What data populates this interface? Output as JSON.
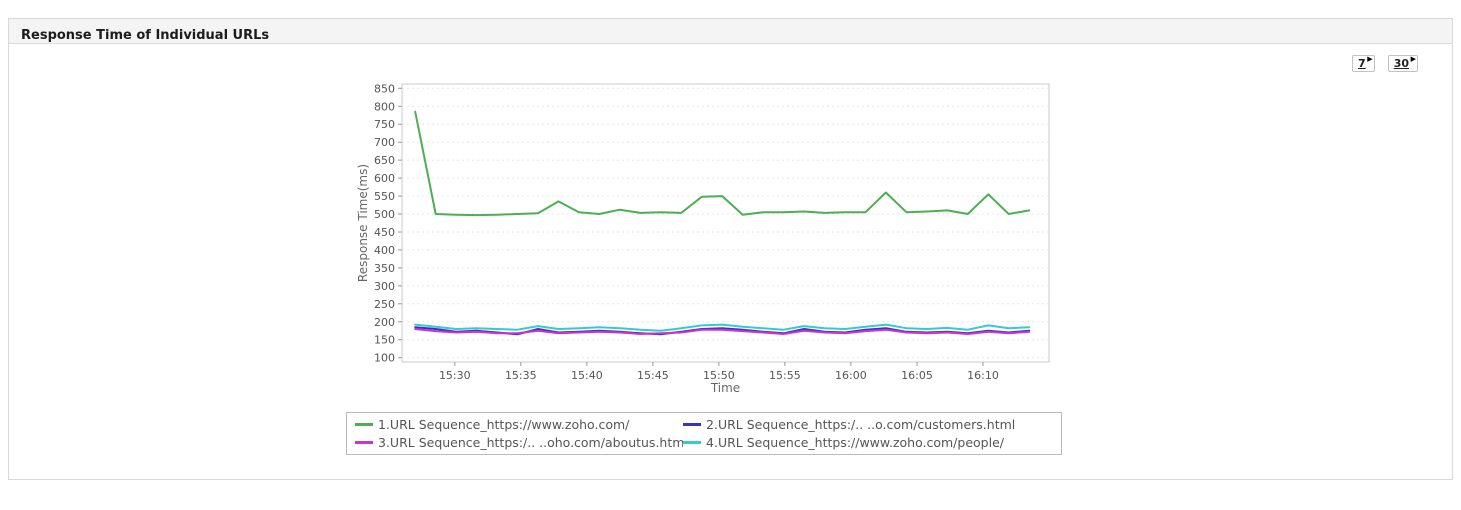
{
  "panel": {
    "title": "Response Time of Individual URLs"
  },
  "toolbar": {
    "buttons": [
      {
        "label": "7"
      },
      {
        "label": "30"
      }
    ]
  },
  "chart_data": {
    "type": "line",
    "title": "Response Time of Individual URLs",
    "xlabel": "Time",
    "ylabel": "Response Time(ms)",
    "ylim": [
      100,
      850
    ],
    "y_ticks": [
      100,
      150,
      200,
      250,
      300,
      350,
      400,
      450,
      500,
      550,
      600,
      650,
      700,
      750,
      800,
      850
    ],
    "x_domain": [
      26,
      75
    ],
    "x_ticks": [
      {
        "pos": 30,
        "label": "15:30"
      },
      {
        "pos": 35,
        "label": "15:35"
      },
      {
        "pos": 40,
        "label": "15:40"
      },
      {
        "pos": 45,
        "label": "15:45"
      },
      {
        "pos": 50,
        "label": "15:50"
      },
      {
        "pos": 55,
        "label": "15:55"
      },
      {
        "pos": 60,
        "label": "16:00"
      },
      {
        "pos": 65,
        "label": "16:05"
      },
      {
        "pos": 70,
        "label": "16:10"
      }
    ],
    "x": [
      27,
      28.55,
      30.1,
      31.65,
      33.2,
      34.75,
      36.3,
      37.85,
      39.4,
      40.95,
      42.5,
      44.05,
      45.6,
      47.15,
      48.7,
      50.25,
      51.8,
      53.35,
      54.9,
      56.45,
      58,
      59.55,
      61.1,
      62.65,
      64.2,
      65.75,
      67.3,
      68.85,
      70.4,
      71.95,
      73.5
    ],
    "series": [
      {
        "name": "1.URL Sequence_https://www.zoho.com/",
        "color": "#4caf50",
        "values": [
          785,
          500,
          498,
          497,
          498,
          500,
          502,
          535,
          505,
          500,
          512,
          503,
          505,
          503,
          548,
          550,
          498,
          505,
          505,
          507,
          503,
          505,
          505,
          560,
          505,
          507,
          510,
          500,
          555,
          500,
          510
        ]
      },
      {
        "name": "2.URL Sequence_https:/.. ..o.com/customers.html",
        "color": "#3333cc",
        "values": [
          185,
          180,
          172,
          175,
          170,
          165,
          180,
          170,
          172,
          175,
          172,
          168,
          165,
          172,
          180,
          182,
          178,
          172,
          168,
          180,
          172,
          170,
          178,
          182,
          172,
          170,
          172,
          168,
          175,
          170,
          175
        ]
      },
      {
        "name": "3.URL Sequence_https:/.. ..oho.com/aboutus.html",
        "color": "#cc33cc",
        "values": [
          180,
          174,
          170,
          172,
          168,
          168,
          175,
          168,
          170,
          172,
          170,
          166,
          168,
          170,
          178,
          178,
          174,
          170,
          166,
          175,
          170,
          168,
          174,
          178,
          170,
          168,
          170,
          166,
          172,
          168,
          172
        ]
      },
      {
        "name": "4.URL Sequence_https://www.zoho.com/people/",
        "color": "#33cccc",
        "values": [
          192,
          186,
          180,
          182,
          180,
          178,
          188,
          180,
          182,
          185,
          182,
          178,
          175,
          182,
          190,
          192,
          186,
          182,
          178,
          188,
          182,
          180,
          186,
          192,
          182,
          180,
          183,
          178,
          190,
          182,
          185
        ]
      }
    ],
    "grid": true,
    "legend_position": "bottom"
  }
}
